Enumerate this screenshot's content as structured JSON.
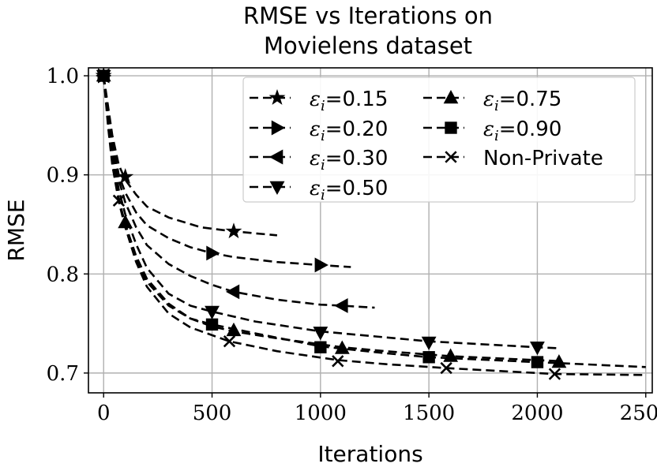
{
  "chart_data": {
    "type": "line",
    "title": "RMSE vs Iterations on",
    "title_line2": "Movielens dataset",
    "xlabel": "Iterations",
    "ylabel": "RMSE",
    "xlim": [
      -70,
      2530
    ],
    "ylim": [
      0.68,
      1.008
    ],
    "xticks": [
      0,
      500,
      1000,
      1500,
      2000,
      2500
    ],
    "xtick_labels": [
      "0",
      "500",
      "1000",
      "1500",
      "2000",
      "2500"
    ],
    "yticks": [
      0.7,
      0.8,
      0.9,
      1.0
    ],
    "ytick_labels": [
      "0.7",
      "0.8",
      "0.9",
      "1.0"
    ],
    "grid": true,
    "legend_position": "top-right",
    "legend_symbol": "ε",
    "legend_subscript": "i",
    "series": [
      {
        "name": "0.15",
        "label": "=0.15",
        "marker": "star",
        "curve": {
          "x": [
            0,
            20,
            40,
            70,
            100,
            150,
            200,
            300,
            450,
            600,
            800
          ],
          "y": [
            1.0,
            0.97,
            0.94,
            0.91,
            0.895,
            0.88,
            0.868,
            0.857,
            0.847,
            0.843,
            0.839
          ]
        },
        "markers": {
          "x": [
            0,
            100,
            600
          ],
          "y": [
            1.0,
            0.898,
            0.843
          ]
        }
      },
      {
        "name": "0.20",
        "label": "=0.20",
        "marker": "triangle-right",
        "curve": {
          "x": [
            0,
            20,
            40,
            70,
            100,
            150,
            200,
            300,
            400,
            500,
            600,
            800,
            1000,
            1140
          ],
          "y": [
            1.0,
            0.965,
            0.935,
            0.9,
            0.882,
            0.862,
            0.849,
            0.836,
            0.827,
            0.821,
            0.817,
            0.812,
            0.809,
            0.807
          ]
        },
        "markers": {
          "x": [
            0,
            500,
            1000
          ],
          "y": [
            1.0,
            0.821,
            0.809
          ]
        }
      },
      {
        "name": "0.30",
        "label": "=0.30",
        "marker": "triangle-left",
        "curve": {
          "x": [
            0,
            20,
            40,
            70,
            100,
            150,
            200,
            300,
            400,
            500,
            600,
            800,
            1000,
            1100,
            1250
          ],
          "y": [
            1.0,
            0.96,
            0.93,
            0.895,
            0.872,
            0.847,
            0.829,
            0.81,
            0.798,
            0.789,
            0.782,
            0.774,
            0.769,
            0.768,
            0.766
          ]
        },
        "markers": {
          "x": [
            0,
            600,
            1100
          ],
          "y": [
            1.0,
            0.782,
            0.768
          ]
        }
      },
      {
        "name": "0.50",
        "label": "=0.50",
        "marker": "triangle-down",
        "curve": {
          "x": [
            0,
            20,
            40,
            70,
            100,
            150,
            200,
            300,
            400,
            500,
            700,
            1000,
            1500,
            2000,
            2100
          ],
          "y": [
            1.0,
            0.96,
            0.925,
            0.885,
            0.86,
            0.83,
            0.806,
            0.78,
            0.768,
            0.762,
            0.752,
            0.742,
            0.732,
            0.726,
            0.725
          ]
        },
        "markers": {
          "x": [
            0,
            500,
            1000,
            1500,
            2000
          ],
          "y": [
            1.0,
            0.762,
            0.741,
            0.731,
            0.726
          ]
        }
      },
      {
        "name": "0.75",
        "label": "=0.75",
        "marker": "triangle-up",
        "curve": {
          "x": [
            0,
            20,
            40,
            70,
            100,
            150,
            200,
            300,
            400,
            500,
            600,
            800,
            1100,
            1300,
            1600,
            2100
          ],
          "y": [
            1.0,
            0.955,
            0.915,
            0.875,
            0.85,
            0.818,
            0.795,
            0.77,
            0.755,
            0.747,
            0.742,
            0.735,
            0.726,
            0.722,
            0.717,
            0.712
          ]
        },
        "markers": {
          "x": [
            0,
            100,
            600,
            1100,
            1600,
            2100
          ],
          "y": [
            1.0,
            0.852,
            0.743,
            0.725,
            0.717,
            0.711
          ]
        }
      },
      {
        "name": "0.90",
        "label": "=0.90",
        "marker": "square",
        "curve": {
          "x": [
            0,
            20,
            40,
            70,
            100,
            150,
            200,
            300,
            400,
            500,
            700,
            1000,
            1300,
            1500,
            2000,
            2500
          ],
          "y": [
            1.0,
            0.955,
            0.915,
            0.875,
            0.85,
            0.815,
            0.792,
            0.768,
            0.755,
            0.749,
            0.74,
            0.727,
            0.72,
            0.716,
            0.711,
            0.706
          ]
        },
        "markers": {
          "x": [
            0,
            500,
            1000,
            1500,
            2000
          ],
          "y": [
            1.0,
            0.749,
            0.726,
            0.716,
            0.711
          ]
        }
      },
      {
        "name": "Non-Private",
        "label": "Non-Private",
        "marker": "x",
        "curve": {
          "x": [
            0,
            20,
            40,
            70,
            100,
            150,
            200,
            300,
            400,
            580,
            800,
            1080,
            1300,
            1580,
            2080,
            2500
          ],
          "y": [
            1.0,
            0.95,
            0.91,
            0.873,
            0.847,
            0.812,
            0.787,
            0.76,
            0.746,
            0.732,
            0.722,
            0.713,
            0.709,
            0.705,
            0.699,
            0.698
          ]
        },
        "markers": {
          "x": [
            0,
            70,
            580,
            1080,
            1580,
            2080
          ],
          "y": [
            1.0,
            0.874,
            0.732,
            0.712,
            0.705,
            0.699
          ]
        }
      }
    ]
  }
}
